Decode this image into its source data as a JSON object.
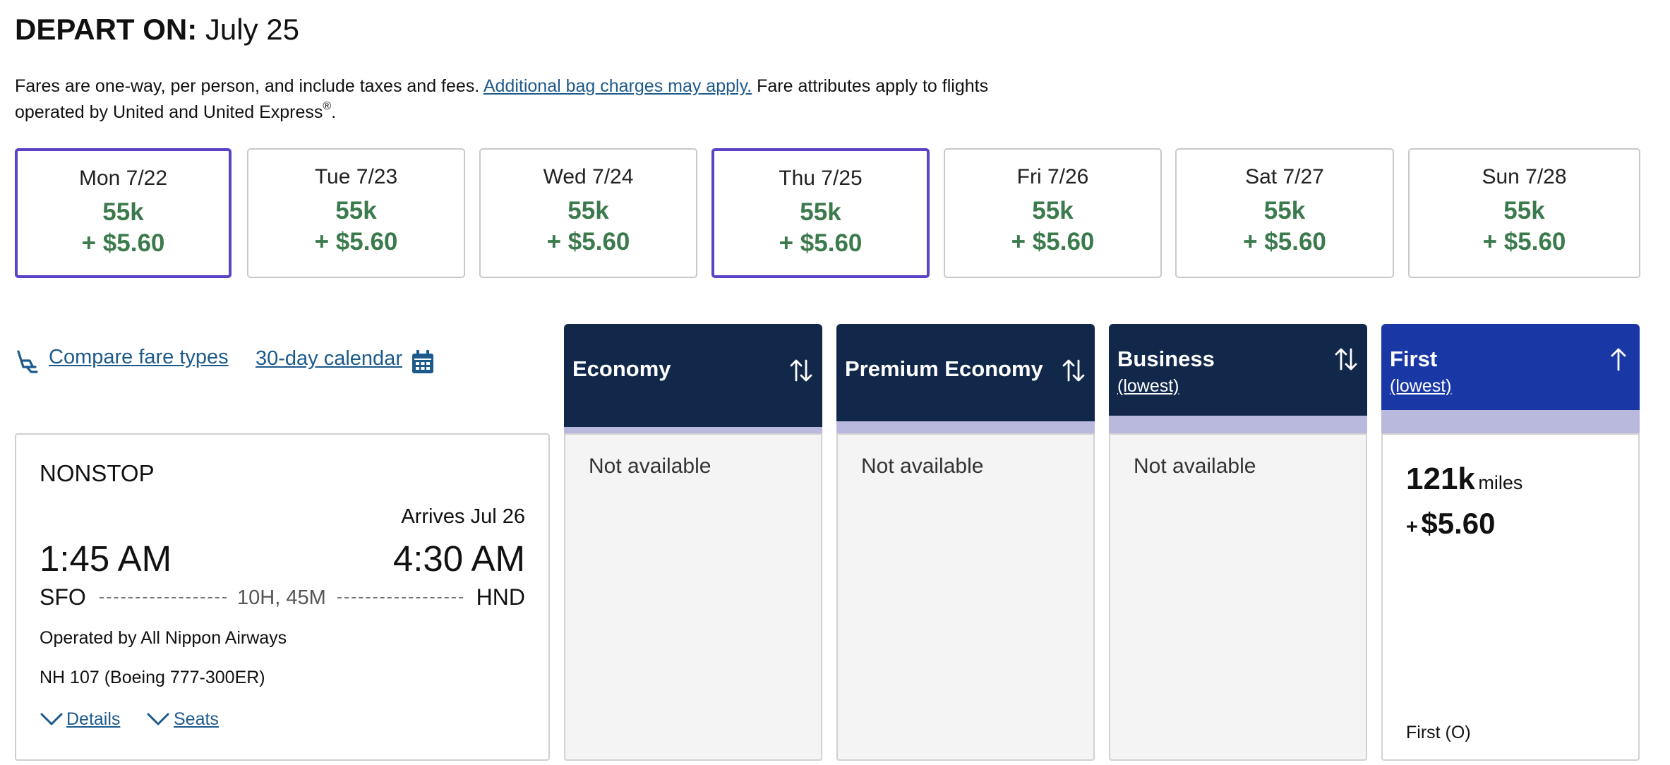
{
  "header": {
    "label": "DEPART ON:",
    "date": "July 25"
  },
  "notice": {
    "text1": "Fares are one-way, per person, and include taxes and fees.",
    "link": "Additional bag charges may apply.",
    "text2": "Fare attributes apply to flights operated by United and United Express",
    "mark": "®",
    "end": "."
  },
  "dates": [
    {
      "day": "Mon 7/22",
      "miles": "55k",
      "price": "+ $5.60"
    },
    {
      "day": "Tue 7/23",
      "miles": "55k",
      "price": "+ $5.60"
    },
    {
      "day": "Wed 7/24",
      "miles": "55k",
      "price": "+ $5.60"
    },
    {
      "day": "Thu 7/25",
      "miles": "55k",
      "price": "+ $5.60"
    },
    {
      "day": "Fri 7/26",
      "miles": "55k",
      "price": "+ $5.60"
    },
    {
      "day": "Sat 7/27",
      "miles": "55k",
      "price": "+ $5.60"
    },
    {
      "day": "Sun 7/28",
      "miles": "55k",
      "price": "+ $5.60"
    }
  ],
  "tools": {
    "compare": "Compare fare types",
    "calendar": "30-day calendar"
  },
  "columns": [
    {
      "name": "Economy",
      "sub": "",
      "status": "Not available"
    },
    {
      "name": "Premium Economy",
      "sub": "",
      "status": "Not available"
    },
    {
      "name": "Business",
      "sub": "(lowest)",
      "status": "Not available"
    },
    {
      "name": "First",
      "sub": "(lowest)",
      "status": ""
    }
  ],
  "first_fare": {
    "miles": "121k",
    "miles_unit": "miles",
    "plus": "+",
    "price": "$5.60",
    "cabin": "First (O)"
  },
  "flight": {
    "type": "NONSTOP",
    "arrives": "Arrives Jul 26",
    "dep_time": "1:45 AM",
    "arr_time": "4:30 AM",
    "origin": "SFO",
    "destination": "HND",
    "duration": "10H, 45M",
    "operator": "Operated by All Nippon Airways",
    "flight_no": "NH 107 (Boeing 777-300ER)",
    "details": "Details",
    "seats": "Seats"
  },
  "colors": {
    "header_dark": "#12284b",
    "header_first": "#1a37a6",
    "selected_border": "#5b42c6",
    "fare_green": "#3b7a4c",
    "link": "#1d5a8c",
    "stripe": "#b9b9dd"
  }
}
